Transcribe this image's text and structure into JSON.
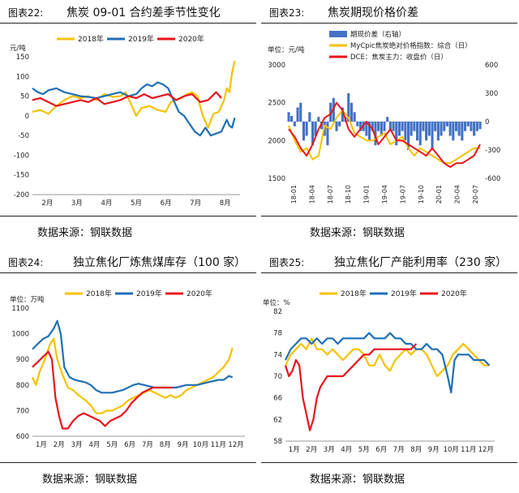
{
  "colors": {
    "y2018": "#f5c200",
    "y2019": "#1f6fb5",
    "y2020": "#e8141b",
    "bar": "#4472c4"
  },
  "panels": [
    {
      "num": "图表22:",
      "title": "焦炭 09-01 合约差季节性变化",
      "source": "数据来源：钢联数据"
    },
    {
      "num": "图表23:",
      "title": "焦炭期现价格价差",
      "source": "数据来源：钢联数据"
    },
    {
      "num": "图表24:",
      "title": "独立焦化厂炼焦煤库存（100 家）",
      "source": "数据来源：钢联数据"
    },
    {
      "num": "图表25:",
      "title": "独立焦化厂产能利用率（230 家）",
      "source": "数据来源：钢联数据"
    }
  ],
  "chart_data": [
    {
      "type": "line",
      "unit_label": "元/吨",
      "x_ticks": [
        "2月",
        "3月",
        "4月",
        "5月",
        "6月",
        "7月",
        "8月"
      ],
      "ylim": [
        -200,
        150
      ],
      "y_ticks": [
        150,
        100,
        50,
        0,
        -50,
        -100,
        -150,
        -200
      ],
      "series": [
        {
          "name": "2018年",
          "key": "y2018",
          "x": [
            0,
            0.3,
            0.6,
            0.9,
            1.2,
            1.5,
            1.8,
            2.1,
            2.4,
            2.7,
            3,
            3.3,
            3.5,
            3.7,
            3.9,
            4.1,
            4.4,
            4.7,
            5,
            5.2,
            5.4,
            5.6,
            5.8,
            6,
            6.2,
            6.4,
            6.6,
            6.8,
            7,
            7.2,
            7.3,
            7.4,
            7.5,
            7.6
          ],
          "y": [
            10,
            15,
            5,
            25,
            40,
            50,
            45,
            50,
            40,
            55,
            48,
            50,
            60,
            30,
            0,
            20,
            25,
            15,
            10,
            35,
            40,
            45,
            55,
            60,
            50,
            0,
            -30,
            5,
            10,
            40,
            70,
            60,
            110,
            140
          ]
        },
        {
          "name": "2019年",
          "key": "y2019",
          "x": [
            0,
            0.2,
            0.4,
            0.6,
            0.9,
            1.2,
            1.5,
            1.8,
            2.1,
            2.4,
            2.7,
            3,
            3.3,
            3.6,
            3.9,
            4.1,
            4.3,
            4.5,
            4.7,
            4.9,
            5.1,
            5.3,
            5.5,
            5.7,
            5.9,
            6.1,
            6.3,
            6.5,
            6.7,
            6.9,
            7.1,
            7.3,
            7.4,
            7.5,
            7.6
          ],
          "y": [
            70,
            60,
            55,
            65,
            70,
            60,
            55,
            50,
            48,
            45,
            50,
            55,
            60,
            50,
            55,
            70,
            80,
            75,
            85,
            80,
            70,
            40,
            10,
            0,
            -20,
            -40,
            -50,
            -30,
            -50,
            -45,
            -40,
            -10,
            -25,
            -30,
            -5
          ]
        },
        {
          "name": "2020年",
          "key": "y2020",
          "x": [
            0,
            0.3,
            0.6,
            0.9,
            1.2,
            1.5,
            1.8,
            2.1,
            2.4,
            2.7,
            3,
            3.3,
            3.6,
            3.9,
            4.2,
            4.5,
            4.8,
            5.1,
            5.4,
            5.7,
            6,
            6.3,
            6.6,
            6.9,
            7.1
          ],
          "y": [
            40,
            45,
            35,
            25,
            30,
            35,
            40,
            35,
            45,
            30,
            35,
            40,
            50,
            45,
            55,
            45,
            50,
            55,
            40,
            50,
            55,
            35,
            40,
            60,
            45
          ]
        }
      ]
    },
    {
      "type": "line",
      "unit_label": "单位：元/吨",
      "x_ticks": [
        "18-01",
        "18-04",
        "18-07",
        "18-10",
        "19-01",
        "19-04",
        "19-07",
        "19-10",
        "20-01",
        "20-04",
        "20-07"
      ],
      "ylim_left": [
        1500,
        3000
      ],
      "y_ticks_left": [
        3000,
        2500,
        2000,
        1500
      ],
      "ylim_right": [
        -600,
        600
      ],
      "y_ticks_right": [
        600,
        300,
        0,
        -300,
        -600
      ],
      "legend": [
        "期现价差（右轴）",
        "MyCpic焦炭绝对价格指数：综合（日）",
        "DCE：焦炭主力：收盘价（日）"
      ],
      "series": [
        {
          "name": "期现价差（右轴）",
          "key": "bar",
          "axis": "right",
          "kind": "bar",
          "x": [
            0,
            0.5,
            1,
            1.5,
            2,
            2.5,
            3,
            3.5,
            4,
            4.5,
            5,
            5.5,
            6,
            6.5,
            7,
            7.5,
            8,
            8.5,
            9,
            9.5,
            10,
            10.5,
            11,
            11.5,
            12,
            12.5,
            13,
            13.5,
            14,
            14.5,
            15,
            15.5,
            16,
            16.5,
            17,
            17.5,
            18,
            18.5,
            19,
            19.5,
            20,
            20.5,
            21,
            21.5,
            22,
            22.5,
            23,
            23.5,
            24,
            24.5,
            25,
            25.5,
            26,
            26.5,
            27,
            27.5,
            28,
            28.5,
            29,
            29.5,
            30,
            30.5,
            31,
            31.5,
            32
          ],
          "y": [
            100,
            60,
            -50,
            150,
            200,
            -200,
            -150,
            100,
            -250,
            -150,
            50,
            -80,
            -150,
            -250,
            200,
            250,
            -100,
            -50,
            150,
            50,
            300,
            200,
            100,
            -50,
            -100,
            -100,
            -150,
            -200,
            -100,
            -250,
            -100,
            -150,
            -100,
            50,
            -100,
            -100,
            -250,
            -150,
            -100,
            -200,
            -300,
            -150,
            -100,
            -200,
            -250,
            -100,
            -200,
            -150,
            -300,
            -100,
            -200,
            -150,
            -100,
            -50,
            -150,
            -200,
            -100,
            -150,
            -200,
            -100,
            -50,
            -100,
            -150,
            -100,
            -80
          ]
        },
        {
          "name": "MyCpic焦炭绝对价格指数：综合（日）",
          "key": "y2018",
          "axis": "left",
          "x": [
            0,
            1,
            2,
            3,
            4,
            5,
            6,
            7,
            8,
            9,
            10,
            11,
            12,
            13,
            14,
            15,
            16,
            17,
            18,
            19,
            20,
            21,
            22,
            23,
            24,
            25,
            26,
            27,
            28,
            29,
            30,
            31,
            32
          ],
          "y": [
            2200,
            2000,
            1850,
            1900,
            1750,
            1800,
            2200,
            2150,
            2300,
            2400,
            2300,
            2100,
            2050,
            2000,
            2000,
            2050,
            2100,
            1950,
            2000,
            2050,
            1900,
            1800,
            1900,
            1850,
            1800,
            1750,
            1700,
            1700,
            1750,
            1800,
            1850,
            1900,
            1900
          ]
        },
        {
          "name": "DCE：焦炭主力：收盘价（日）",
          "key": "y2020",
          "axis": "left",
          "x": [
            0,
            1,
            2,
            3,
            4,
            5,
            6,
            7,
            8,
            9,
            10,
            11,
            12,
            13,
            14,
            15,
            16,
            17,
            18,
            19,
            20,
            21,
            22,
            23,
            24,
            25,
            26,
            27,
            28,
            29,
            30,
            31,
            32
          ],
          "y": [
            2150,
            2050,
            1900,
            1800,
            1950,
            2150,
            2300,
            2350,
            2500,
            2400,
            2150,
            2050,
            2150,
            2250,
            2150,
            1950,
            2050,
            2150,
            2000,
            2000,
            1950,
            1900,
            1850,
            1800,
            1900,
            1800,
            1700,
            1650,
            1700,
            1700,
            1750,
            1800,
            1950
          ]
        }
      ]
    },
    {
      "type": "line",
      "unit_label": "单位：万吨",
      "x_ticks": [
        "1月",
        "2月",
        "3月",
        "4月",
        "5月",
        "6月",
        "7月",
        "8月",
        "9月",
        "10月",
        "11月",
        "12月"
      ],
      "ylim": [
        600,
        1100
      ],
      "y_ticks": [
        1100,
        1000,
        900,
        800,
        700,
        600
      ],
      "series": [
        {
          "name": "2018年",
          "key": "y2018",
          "x": [
            0,
            0.2,
            0.4,
            0.7,
            1,
            1.2,
            1.4,
            1.7,
            2,
            2.3,
            2.6,
            3,
            3.3,
            3.6,
            3.9,
            4.2,
            4.5,
            4.8,
            5.1,
            5.4,
            5.7,
            6,
            6.3,
            6.6,
            6.9,
            7.2,
            7.5,
            7.8,
            8.1,
            8.4,
            8.7,
            9,
            9.3,
            9.6,
            9.9,
            10.2,
            10.5,
            10.8,
            11.1,
            11.3
          ],
          "y": [
            830,
            800,
            850,
            900,
            960,
            980,
            900,
            840,
            790,
            780,
            760,
            740,
            720,
            690,
            690,
            700,
            700,
            710,
            720,
            740,
            750,
            760,
            770,
            780,
            770,
            760,
            750,
            760,
            750,
            760,
            780,
            790,
            800,
            810,
            820,
            830,
            850,
            870,
            900,
            945
          ]
        },
        {
          "name": "2019年",
          "key": "y2019",
          "x": [
            0,
            0.3,
            0.6,
            0.9,
            1.2,
            1.4,
            1.6,
            1.8,
            2.1,
            2.4,
            2.7,
            3,
            3.3,
            3.6,
            3.9,
            4.2,
            4.5,
            4.8,
            5.1,
            5.4,
            5.7,
            6,
            6.3,
            6.6,
            6.9,
            7.2,
            7.5,
            7.8,
            8.1,
            8.4,
            8.7,
            9,
            9.3,
            9.6,
            9.9,
            10.2,
            10.5,
            10.8,
            11.1,
            11.3
          ],
          "y": [
            940,
            960,
            980,
            990,
            1020,
            1050,
            1000,
            870,
            830,
            820,
            815,
            810,
            800,
            780,
            770,
            770,
            770,
            775,
            780,
            790,
            800,
            805,
            800,
            795,
            790,
            790,
            790,
            790,
            790,
            795,
            800,
            800,
            800,
            805,
            810,
            815,
            820,
            820,
            835,
            830
          ]
        },
        {
          "name": "2020年",
          "key": "y2020",
          "x": [
            0,
            0.3,
            0.6,
            0.9,
            1.1,
            1.3,
            1.5,
            1.7,
            2,
            2.3,
            2.6,
            2.9,
            3.2,
            3.5,
            3.8,
            4.1,
            4.4,
            4.7,
            5,
            5.3,
            5.6,
            5.9,
            6.2,
            6.5,
            6.8,
            7.1,
            7.4,
            7.7,
            7.9
          ],
          "y": [
            870,
            890,
            910,
            930,
            900,
            750,
            680,
            630,
            630,
            660,
            680,
            690,
            680,
            670,
            660,
            640,
            660,
            670,
            680,
            700,
            730,
            750,
            770,
            780,
            790,
            790,
            790,
            790,
            790
          ]
        }
      ]
    },
    {
      "type": "line",
      "unit_label": "单位：%",
      "x_ticks": [
        "1月",
        "2月",
        "3月",
        "4月",
        "5月",
        "6月",
        "7月",
        "8月",
        "9月",
        "10月",
        "11月",
        "12月"
      ],
      "ylim": [
        58,
        82
      ],
      "y_ticks": [
        82,
        78,
        74,
        70,
        66,
        62,
        58
      ],
      "series": [
        {
          "name": "2018年",
          "key": "y2018",
          "x": [
            0,
            0.3,
            0.6,
            0.9,
            1.2,
            1.5,
            1.8,
            2.1,
            2.4,
            2.7,
            3,
            3.3,
            3.6,
            3.9,
            4.2,
            4.5,
            4.8,
            5.1,
            5.4,
            5.7,
            6,
            6.3,
            6.6,
            6.9,
            7.2,
            7.5,
            7.8,
            8.1,
            8.4,
            8.7,
            9,
            9.3,
            9.6,
            9.9,
            10.2,
            10.5,
            10.8,
            11.1,
            11.4,
            11.7
          ],
          "y": [
            72,
            74,
            75,
            76,
            75,
            77,
            75,
            75,
            74,
            75,
            74,
            73,
            74,
            75,
            75,
            74,
            72,
            72,
            74,
            72,
            71,
            73,
            74,
            75,
            74,
            75,
            75,
            74,
            72,
            70,
            71,
            72,
            74,
            75,
            76,
            75,
            74,
            73,
            72,
            72
          ]
        },
        {
          "name": "2019年",
          "key": "y2019",
          "x": [
            0,
            0.3,
            0.6,
            0.9,
            1.2,
            1.5,
            1.8,
            2.1,
            2.4,
            2.7,
            3,
            3.3,
            3.6,
            3.9,
            4.2,
            4.5,
            4.8,
            5.1,
            5.4,
            5.7,
            6,
            6.3,
            6.6,
            6.9,
            7.2,
            7.5,
            7.8,
            8.1,
            8.4,
            8.7,
            9,
            9.3,
            9.5,
            9.7,
            9.9,
            10.2,
            10.5,
            10.8,
            11.1,
            11.4,
            11.7
          ],
          "y": [
            73,
            75,
            76,
            77,
            77,
            76,
            77,
            76,
            77,
            77,
            76,
            77,
            77,
            77,
            77,
            77,
            78,
            77,
            77,
            77,
            78,
            77,
            77,
            76,
            76,
            75,
            75,
            76,
            75,
            75,
            74,
            70,
            67,
            73,
            74,
            74,
            74,
            73,
            73,
            73,
            72
          ]
        },
        {
          "name": "2020年",
          "key": "y2020",
          "x": [
            0,
            0.2,
            0.4,
            0.6,
            0.8,
            1,
            1.2,
            1.4,
            1.6,
            1.8,
            2,
            2.2,
            2.4,
            2.6,
            2.8,
            3,
            3.3,
            3.6,
            3.9,
            4.2,
            4.5,
            4.8,
            5.1,
            5.4,
            5.7,
            6,
            6.3,
            6.6,
            6.9,
            7.2,
            7.5
          ],
          "y": [
            72,
            70,
            71,
            73,
            72,
            66,
            63,
            60,
            62,
            66,
            68,
            69,
            70,
            70,
            70,
            70,
            70,
            71,
            72,
            73,
            74,
            74,
            75,
            75,
            75,
            75,
            75,
            75,
            75,
            75,
            76
          ]
        }
      ]
    }
  ],
  "legends": {
    "years": [
      "2018年",
      "2019年",
      "2020年"
    ]
  }
}
